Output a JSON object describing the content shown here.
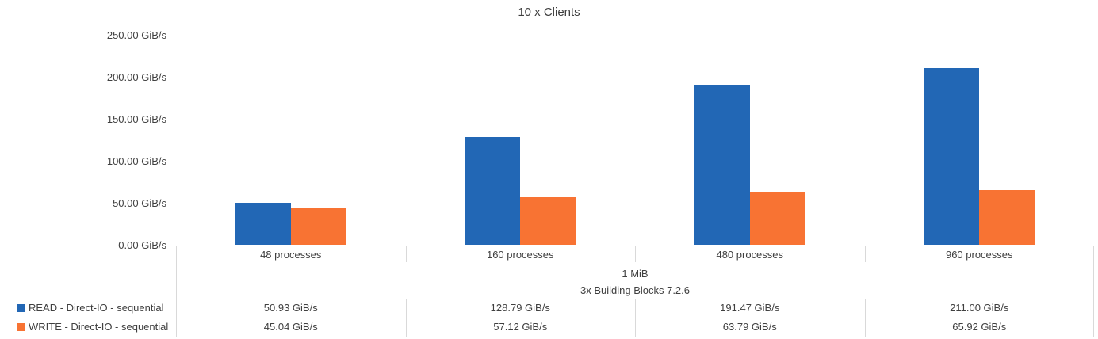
{
  "chart_data": {
    "type": "bar",
    "title": "10 x Clients",
    "unit": "GiB/s",
    "categories": [
      "48 processes",
      "160 processes",
      "480 processes",
      "960 processes"
    ],
    "group_labels": [
      "1 MiB",
      "3x Building Blocks 7.2.6"
    ],
    "series": [
      {
        "name": "READ - Direct-IO - sequential",
        "color": "#2267b5",
        "values": [
          50.93,
          128.79,
          191.47,
          211.0
        ]
      },
      {
        "name": "WRITE - Direct-IO - sequential",
        "color": "#f87333",
        "values": [
          45.04,
          57.12,
          63.79,
          65.92
        ]
      }
    ],
    "ylim": [
      0,
      250
    ],
    "ytick_step": 50,
    "yticks": [
      "0.00 GiB/s",
      "50.00 GiB/s",
      "100.00 GiB/s",
      "150.00 GiB/s",
      "200.00 GiB/s",
      "250.00 GiB/s"
    ],
    "grid": true,
    "legend_position": "bottom-table"
  },
  "colors": {
    "read_series": "#2267b5",
    "write_series": "#f87333",
    "gridline": "#d9d9d9",
    "border": "#d9d9d9",
    "text": "#404040"
  }
}
